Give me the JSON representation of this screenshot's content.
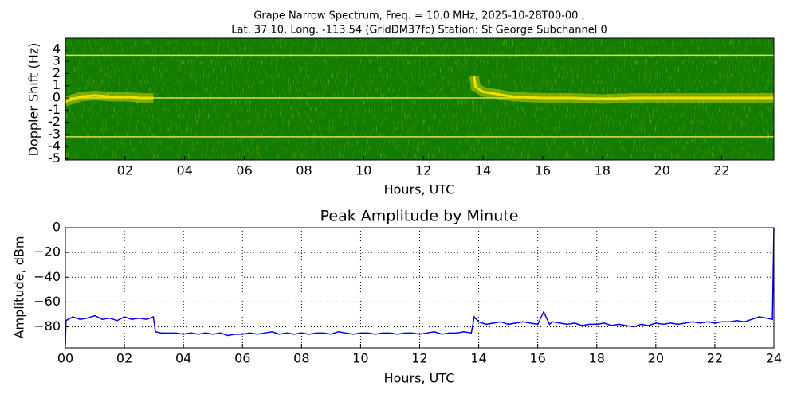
{
  "chart_data": [
    {
      "type": "spectrogram",
      "title": "Grape Narrow Spectrum, Freq. = 10.0 MHz, 2025-10-28T00-00 ,",
      "subtitle": "Lat.  37.10, Long. -113.54 (GridDM37fc) Station: St George Subchannel 0",
      "x_label": "Hours, UTC",
      "y_label": "Doppler Shift (Hz)",
      "xlim": [
        0,
        23.75
      ],
      "ylim": [
        -5.1,
        4.9
      ],
      "xticks": [
        {
          "value": 2,
          "label": "02"
        },
        {
          "value": 4,
          "label": "04"
        },
        {
          "value": 6,
          "label": "06"
        },
        {
          "value": 8,
          "label": "08"
        },
        {
          "value": 10,
          "label": "10"
        },
        {
          "value": 12,
          "label": "12"
        },
        {
          "value": 14,
          "label": "14"
        },
        {
          "value": 16,
          "label": "16"
        },
        {
          "value": 18,
          "label": "18"
        },
        {
          "value": 20,
          "label": "20"
        },
        {
          "value": 22,
          "label": "22"
        }
      ],
      "yticks": [
        -5,
        -4,
        -3,
        -2,
        -1,
        0,
        1,
        2,
        3,
        4
      ],
      "background": "#127c00",
      "line_color": "#e0e040",
      "color": "#f0e000",
      "hlines": [
        3.5,
        0,
        -3.2
      ],
      "x": [
        0,
        0.5,
        1,
        1.5,
        2,
        2.5,
        2.95,
        3.0,
        13.7,
        13.75,
        14,
        14.5,
        15,
        16,
        17,
        18,
        19,
        20,
        21,
        22,
        23,
        23.75
      ],
      "values": [
        -0.3,
        0.1,
        0.2,
        0.1,
        0.1,
        0,
        0,
        null,
        1.8,
        0.9,
        0.5,
        0.3,
        0.1,
        0,
        0,
        -0.1,
        0,
        0,
        0,
        0,
        0,
        0
      ]
    },
    {
      "type": "line",
      "title": "Peak Amplitude by Minute",
      "x_label": "Hours, UTC",
      "y_label": "Amplitude, dBm",
      "xlim": [
        0,
        24
      ],
      "ylim": [
        -97,
        0
      ],
      "grid": true,
      "color": "#0000ff",
      "xticks": [
        {
          "value": 0,
          "label": "00"
        },
        {
          "value": 2,
          "label": "02"
        },
        {
          "value": 4,
          "label": "04"
        },
        {
          "value": 6,
          "label": "06"
        },
        {
          "value": 8,
          "label": "08"
        },
        {
          "value": 10,
          "label": "10"
        },
        {
          "value": 12,
          "label": "12"
        },
        {
          "value": 14,
          "label": "14"
        },
        {
          "value": 16,
          "label": "16"
        },
        {
          "value": 18,
          "label": "18"
        },
        {
          "value": 20,
          "label": "20"
        },
        {
          "value": 22,
          "label": "22"
        },
        {
          "value": 24,
          "label": "24"
        }
      ],
      "yticks": [
        0,
        {
          "value": -20,
          "label": "−20"
        },
        {
          "value": -40,
          "label": "−40"
        },
        {
          "value": -60,
          "label": "−60"
        },
        {
          "value": -80,
          "label": "−80"
        }
      ],
      "x": [
        0,
        0.02,
        0.25,
        0.5,
        0.75,
        1,
        1.25,
        1.5,
        1.75,
        2,
        2.25,
        2.5,
        2.75,
        2.98,
        3.05,
        3.25,
        3.5,
        3.75,
        4,
        4.25,
        4.5,
        4.75,
        5,
        5.25,
        5.5,
        5.75,
        6,
        6.25,
        6.5,
        6.75,
        7,
        7.25,
        7.5,
        7.75,
        8,
        8.25,
        8.5,
        8.75,
        9,
        9.25,
        9.5,
        9.75,
        10,
        10.25,
        10.5,
        10.75,
        11,
        11.25,
        11.5,
        11.75,
        12,
        12.25,
        12.5,
        12.75,
        13,
        13.25,
        13.5,
        13.75,
        13.85,
        14,
        14.25,
        14.5,
        14.75,
        15,
        15.25,
        15.5,
        15.75,
        16,
        16.2,
        16.4,
        16.5,
        16.75,
        17,
        17.25,
        17.5,
        17.75,
        18,
        18.25,
        18.5,
        18.75,
        19,
        19.25,
        19.5,
        19.75,
        20,
        20.25,
        20.5,
        20.75,
        21,
        21.25,
        21.5,
        21.75,
        22,
        22.25,
        22.5,
        22.75,
        23,
        23.25,
        23.5,
        23.75,
        23.95,
        24
      ],
      "values": [
        -95,
        -75,
        -72,
        -74,
        -73,
        -71,
        -74,
        -73,
        -75,
        -72,
        -74,
        -73,
        -74,
        -72,
        -84,
        -85,
        -85,
        -85,
        -86,
        -85,
        -86,
        -85,
        -86,
        -85,
        -87,
        -86,
        -86,
        -85,
        -86,
        -85,
        -84,
        -86,
        -85,
        -86,
        -85,
        -86,
        -85,
        -85,
        -86,
        -84,
        -85,
        -86,
        -85,
        -85,
        -86,
        -85,
        -85,
        -86,
        -85,
        -85,
        -86,
        -85,
        -84,
        -86,
        -85,
        -85,
        -84,
        -85,
        -72,
        -76,
        -78,
        -77,
        -76,
        -78,
        -77,
        -76,
        -77,
        -78,
        -68,
        -78,
        -76,
        -77,
        -78,
        -77,
        -79,
        -78,
        -78,
        -77,
        -79,
        -78,
        -79,
        -80,
        -78,
        -79,
        -77,
        -78,
        -77,
        -78,
        -77,
        -76,
        -77,
        -76,
        -77,
        -76,
        -76,
        -75,
        -76,
        -74,
        -72,
        -73,
        -74,
        0
      ]
    }
  ]
}
